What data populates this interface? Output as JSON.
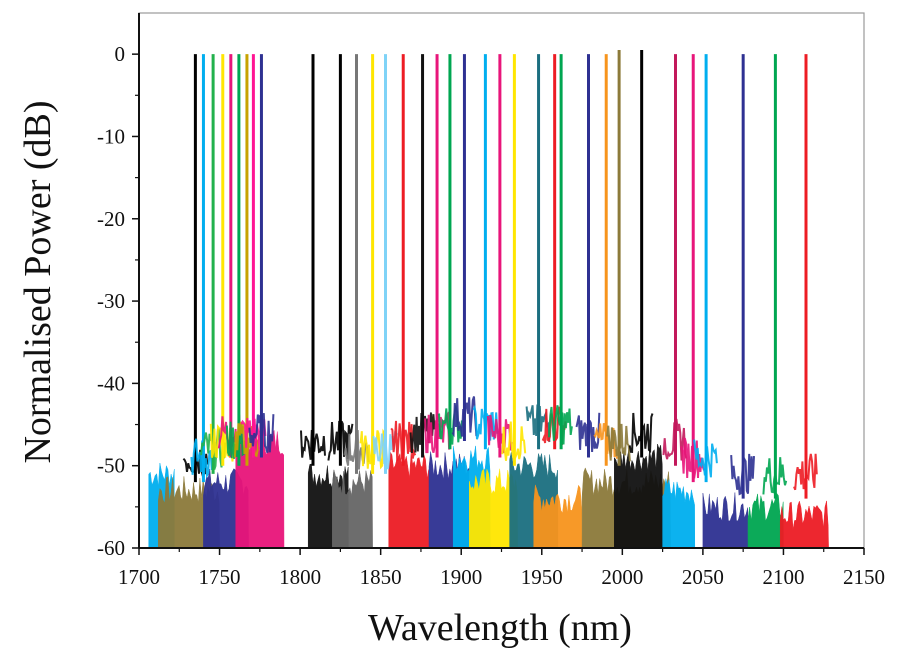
{
  "chart_data": {
    "type": "line",
    "xlabel": "Wavelength (nm)",
    "ylabel": "Normalised Power (dB)",
    "xlim": [
      1700,
      2150
    ],
    "ylim": [
      -60,
      5
    ],
    "x_ticks": [
      1700,
      1750,
      1800,
      1850,
      1900,
      1950,
      2000,
      2050,
      2100,
      2150
    ],
    "x_tick_labels": [
      "1700",
      "1750",
      "1800",
      "1850",
      "1900",
      "1950",
      "2000",
      "2050",
      "2100",
      "2150"
    ],
    "y_ticks": [
      0,
      -10,
      -20,
      -30,
      -40,
      -50,
      -60
    ],
    "y_tick_labels": [
      "0",
      "-10",
      "-20",
      "-30",
      "-40",
      "-50",
      "-60"
    ],
    "grid": false,
    "legend": "none",
    "series": [
      {
        "peak_nm": 1735,
        "peak_db": 0,
        "floor_db": -52,
        "color": "#000000"
      },
      {
        "peak_nm": 1740,
        "peak_db": 0,
        "floor_db": -52,
        "color": "#00aeef"
      },
      {
        "peak_nm": 1746,
        "peak_db": 0,
        "floor_db": -51,
        "color": "#22b14c"
      },
      {
        "peak_nm": 1752,
        "peak_db": 0,
        "floor_db": -50,
        "color": "#ffe600"
      },
      {
        "peak_nm": 1757,
        "peak_db": 0,
        "floor_db": -49,
        "color": "#e8157a"
      },
      {
        "peak_nm": 1762,
        "peak_db": 0,
        "floor_db": -50,
        "color": "#00a651"
      },
      {
        "peak_nm": 1767,
        "peak_db": 0,
        "floor_db": -50,
        "color": "#c8a200"
      },
      {
        "peak_nm": 1771,
        "peak_db": 0,
        "floor_db": -49,
        "color": "#ff1493"
      },
      {
        "peak_nm": 1776,
        "peak_db": 0,
        "floor_db": -49,
        "color": "#2e3192"
      },
      {
        "peak_nm": 1808,
        "peak_db": 0,
        "floor_db": -50,
        "color": "#000000"
      },
      {
        "peak_nm": 1825,
        "peak_db": 0,
        "floor_db": -50,
        "color": "#000000"
      },
      {
        "peak_nm": 1835,
        "peak_db": 0,
        "floor_db": -51,
        "color": "#777777"
      },
      {
        "peak_nm": 1845,
        "peak_db": 0,
        "floor_db": -51,
        "color": "#ffe600"
      },
      {
        "peak_nm": 1853,
        "peak_db": 0,
        "floor_db": -51,
        "color": "#7fd3f7"
      },
      {
        "peak_nm": 1864,
        "peak_db": 0,
        "floor_db": -50,
        "color": "#ed1c24"
      },
      {
        "peak_nm": 1876,
        "peak_db": 0,
        "floor_db": -49,
        "color": "#111111"
      },
      {
        "peak_nm": 1885,
        "peak_db": 0,
        "floor_db": -49,
        "color": "#e8157a"
      },
      {
        "peak_nm": 1893,
        "peak_db": 0,
        "floor_db": -48,
        "color": "#00a651"
      },
      {
        "peak_nm": 1902,
        "peak_db": 0,
        "floor_db": -47,
        "color": "#2e3192"
      },
      {
        "peak_nm": 1915,
        "peak_db": 0,
        "floor_db": -48,
        "color": "#00aeef"
      },
      {
        "peak_nm": 1924,
        "peak_db": 0,
        "floor_db": -49,
        "color": "#e8157a"
      },
      {
        "peak_nm": 1933,
        "peak_db": 0,
        "floor_db": -50,
        "color": "#ffe600"
      },
      {
        "peak_nm": 1948,
        "peak_db": 0,
        "floor_db": -48,
        "color": "#1b6f80"
      },
      {
        "peak_nm": 1958,
        "peak_db": 0,
        "floor_db": -48,
        "color": "#ed1c24"
      },
      {
        "peak_nm": 1962,
        "peak_db": 0,
        "floor_db": -48,
        "color": "#00a651"
      },
      {
        "peak_nm": 1979,
        "peak_db": 0,
        "floor_db": -49,
        "color": "#2e3192"
      },
      {
        "peak_nm": 1990,
        "peak_db": 0,
        "floor_db": -50,
        "color": "#f7941d"
      },
      {
        "peak_nm": 1998,
        "peak_db": 0.5,
        "floor_db": -50,
        "color": "#8c7a3a"
      },
      {
        "peak_nm": 2012,
        "peak_db": 0.5,
        "floor_db": -49,
        "color": "#000000"
      },
      {
        "peak_nm": 2033,
        "peak_db": 0,
        "floor_db": -50,
        "color": "#c2185b"
      },
      {
        "peak_nm": 2044,
        "peak_db": 0,
        "floor_db": -52,
        "color": "#e8157a"
      },
      {
        "peak_nm": 2052,
        "peak_db": 0,
        "floor_db": -52,
        "color": "#00aeef"
      },
      {
        "peak_nm": 2075,
        "peak_db": 0,
        "floor_db": -54,
        "color": "#2e3192"
      },
      {
        "peak_nm": 2095,
        "peak_db": 0,
        "floor_db": -54,
        "color": "#00a651"
      },
      {
        "peak_nm": 2114,
        "peak_db": 0,
        "floor_db": -54,
        "color": "#ed1c24"
      }
    ],
    "pedestals": [
      {
        "from_nm": 1706,
        "to_nm": 1722,
        "level_db": -51,
        "color": "#00aeef"
      },
      {
        "from_nm": 1712,
        "to_nm": 1750,
        "level_db": -53,
        "color": "#8c7a3a"
      },
      {
        "from_nm": 1740,
        "to_nm": 1768,
        "level_db": -52,
        "color": "#2e3192"
      },
      {
        "from_nm": 1760,
        "to_nm": 1790,
        "level_db": -47,
        "color": "#e8157a"
      },
      {
        "from_nm": 1805,
        "to_nm": 1830,
        "level_db": -51,
        "color": "#111111"
      },
      {
        "from_nm": 1820,
        "to_nm": 1845,
        "level_db": -52,
        "color": "#666666"
      },
      {
        "from_nm": 1855,
        "to_nm": 1880,
        "level_db": -50,
        "color": "#ed1c24"
      },
      {
        "from_nm": 1880,
        "to_nm": 1905,
        "level_db": -50,
        "color": "#2e3192"
      },
      {
        "from_nm": 1895,
        "to_nm": 1918,
        "level_db": -49,
        "color": "#00aeef"
      },
      {
        "from_nm": 1905,
        "to_nm": 1935,
        "level_db": -52,
        "color": "#ffe600"
      },
      {
        "from_nm": 1930,
        "to_nm": 1960,
        "level_db": -50,
        "color": "#1b6f80"
      },
      {
        "from_nm": 1945,
        "to_nm": 1975,
        "level_db": -54,
        "color": "#f7941d"
      },
      {
        "from_nm": 1975,
        "to_nm": 2030,
        "level_db": -52,
        "color": "#8c7a3a"
      },
      {
        "from_nm": 1995,
        "to_nm": 2025,
        "level_db": -49,
        "color": "#111111"
      },
      {
        "from_nm": 2025,
        "to_nm": 2045,
        "level_db": -53,
        "color": "#00aeef"
      },
      {
        "from_nm": 2050,
        "to_nm": 2078,
        "level_db": -55,
        "color": "#2e3192"
      },
      {
        "from_nm": 2078,
        "to_nm": 2100,
        "level_db": -55,
        "color": "#00a651"
      },
      {
        "from_nm": 2098,
        "to_nm": 2128,
        "level_db": -56,
        "color": "#ed1c24"
      }
    ]
  }
}
